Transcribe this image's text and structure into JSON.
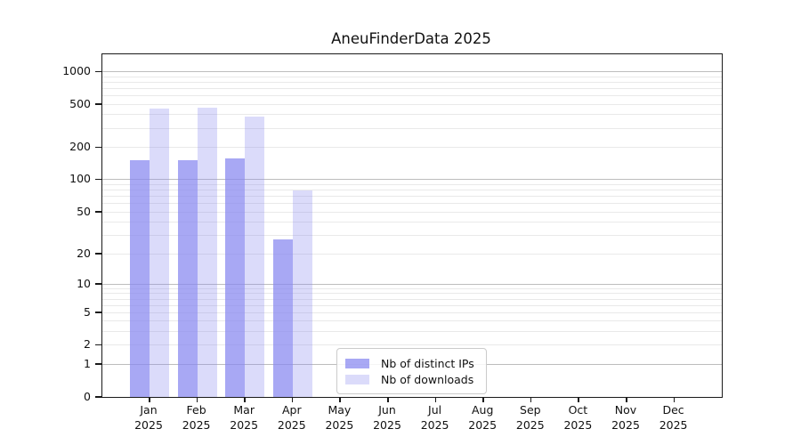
{
  "chart_data": {
    "type": "bar",
    "title": "AneuFinderData 2025",
    "x_axis": {
      "months": [
        "Jan",
        "Feb",
        "Mar",
        "Apr",
        "May",
        "Jun",
        "Jul",
        "Aug",
        "Sep",
        "Oct",
        "Nov",
        "Dec"
      ],
      "year": "2025"
    },
    "series": [
      {
        "name": "Nb of distinct IPs",
        "color": "rgba(135,135,240,0.72)",
        "values": [
          150,
          150,
          156,
          27,
          null,
          null,
          null,
          null,
          null,
          null,
          null,
          null
        ]
      },
      {
        "name": "Nb of downloads",
        "color": "rgba(135,135,240,0.30)",
        "values": [
          450,
          460,
          380,
          78,
          null,
          null,
          null,
          null,
          null,
          null,
          null,
          null
        ]
      }
    ],
    "y_axis": {
      "scale": "log10(value+1)",
      "tick_values": [
        0,
        1,
        2,
        5,
        10,
        20,
        50,
        100,
        200,
        500,
        1000
      ],
      "tick_labels": [
        "0",
        "1",
        "2",
        "5",
        "10",
        "20",
        "50",
        "100",
        "200",
        "500",
        "1000"
      ],
      "major_grid_values": [
        1,
        10,
        100,
        1000
      ],
      "minor_grid_values": [
        2,
        3,
        4,
        5,
        6,
        7,
        8,
        9,
        20,
        30,
        40,
        50,
        60,
        70,
        80,
        90,
        200,
        300,
        400,
        500,
        600,
        700,
        800,
        900
      ],
      "top_value": 1000,
      "bottom_value": 0
    },
    "legend_position": "inside-bottom-center",
    "colors": {
      "bar_base": "#8787F0",
      "grid_major": "#bdbdbd",
      "grid_minor": "#e9e9e9",
      "axis": "#1a1a1a",
      "text": "#111111",
      "legend_border": "#cbcbcb"
    }
  }
}
